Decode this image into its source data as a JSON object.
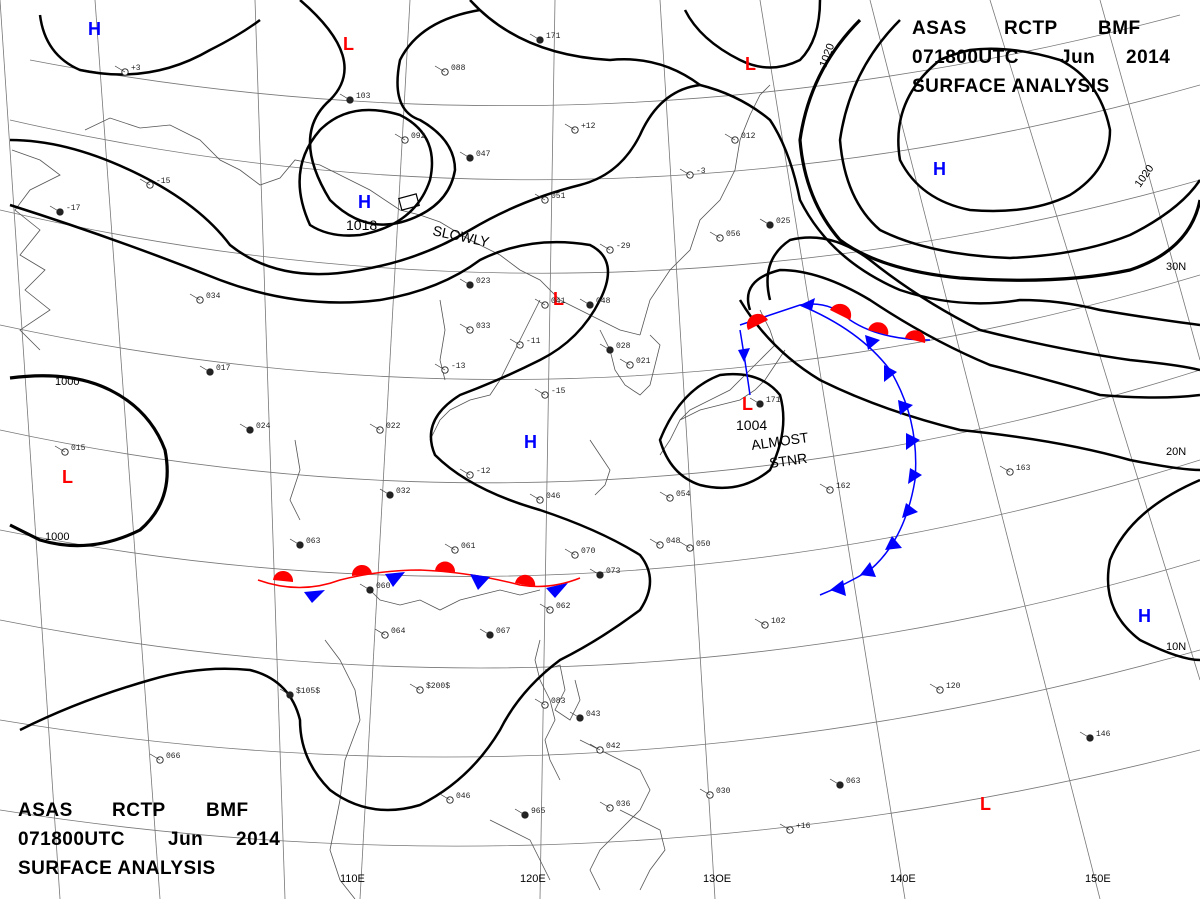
{
  "header_top": {
    "line1_a": "ASAS",
    "line1_b": "RCTP",
    "line1_c": "BMF",
    "line2_a": "071800UTC",
    "line2_b": "Jun",
    "line2_c": "2014",
    "line3": "SURFACE ANALYSIS"
  },
  "header_bottom": {
    "line1_a": "ASAS",
    "line1_b": "RCTP",
    "line1_c": "BMF",
    "line2_a": "071800UTC",
    "line2_b": "Jun",
    "line2_c": "2014",
    "line3": "SURFACE ANALYSIS"
  },
  "colors": {
    "high": "#0000ff",
    "low": "#ff0000",
    "isobar": "#000000",
    "warm_front": "#ff0000",
    "cold_front": "#0000ff"
  },
  "longitudes": [
    "110E",
    "120E",
    "13OE",
    "140E",
    "150E"
  ],
  "latitudes": [
    "30N",
    "20N",
    "10N"
  ],
  "isobar_labels": [
    "1020",
    "1020",
    "1000",
    "1000"
  ],
  "pressure_centers": {
    "H_nw": "H",
    "L_top": "L",
    "L_ne": "L",
    "H_ne": "H",
    "H_main": "H",
    "H_main_value": "1018",
    "L_mid": "L",
    "L_west": "L",
    "H_center": "H",
    "L_typhoon": "L",
    "L_typhoon_value": "1004",
    "H_se": "H",
    "L_se": "L"
  },
  "annotations": {
    "slowly": "SLOWLY",
    "almost": "ALMOST",
    "stnr": "STNR"
  },
  "station_samples": [
    "171",
    "+3",
    "088",
    "103",
    "+12",
    "092",
    "047",
    "-15",
    "051",
    "-17",
    "012",
    "-3",
    "025",
    "056",
    "-29",
    "023",
    "034",
    "041",
    "048",
    "033",
    "-11",
    "028",
    "021",
    "-13",
    "017",
    "-15",
    "022",
    "024",
    "015",
    "-12",
    "032",
    "046",
    "054",
    "063",
    "061",
    "070",
    "073",
    "048",
    "050",
    "060",
    "062",
    "064",
    "067",
    "102",
    "$200$",
    "$105$",
    "066",
    "083",
    "043",
    "042",
    "046",
    "965",
    "036",
    "030",
    "063",
    "+16",
    "120",
    "146",
    "163",
    "162"
  ]
}
